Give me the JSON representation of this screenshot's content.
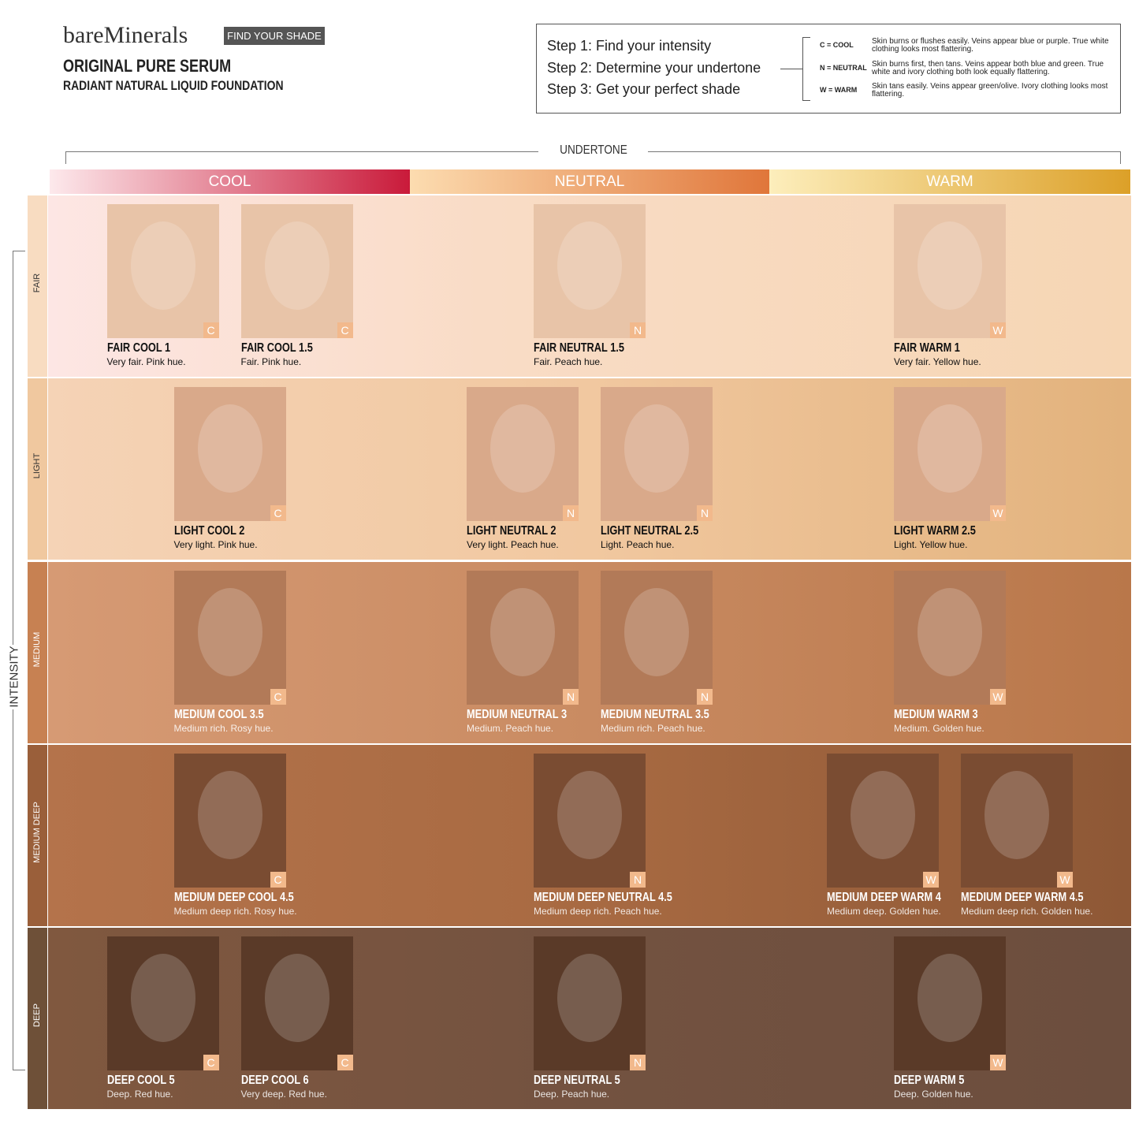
{
  "header": {
    "brand": "bareMinerals",
    "badge": "FIND YOUR SHADE",
    "title": "ORIGINAL PURE SERUM",
    "subtitle": "RADIANT NATURAL LIQUID FOUNDATION"
  },
  "steps": [
    "Step 1: Find your intensity",
    "Step 2: Determine your undertone",
    "Step 3: Get your perfect shade"
  ],
  "undertone_key": [
    {
      "code": "C = COOL",
      "text": "Skin burns or flushes easily. Veins appear blue or purple. True white clothing looks most flattering."
    },
    {
      "code": "N = NEUTRAL",
      "text": "Skin burns first, then tans. Veins appear both blue and green. True white and ivory clothing both look equally flattering."
    },
    {
      "code": "W = WARM",
      "text": "Skin tans easily. Veins appear green/olive. Ivory clothing looks most flattering."
    }
  ],
  "undertone_label": "UNDERTONE",
  "intensity_label": "INTENSITY",
  "columns": [
    "COOL",
    "NEUTRAL",
    "WARM"
  ],
  "rows": [
    {
      "label": "FAIR",
      "shades": [
        {
          "name": "FAIR COOL 1",
          "desc": "Very fair. Pink hue.",
          "tag": "C"
        },
        {
          "name": "FAIR COOL 1.5",
          "desc": "Fair. Pink hue.",
          "tag": "C"
        },
        {
          "name": "FAIR NEUTRAL 1.5",
          "desc": "Fair. Peach hue.",
          "tag": "N"
        },
        {
          "name": "FAIR WARM 1",
          "desc": "Very fair. Yellow hue.",
          "tag": "W"
        }
      ]
    },
    {
      "label": "LIGHT",
      "shades": [
        {
          "name": "LIGHT COOL 2",
          "desc": "Very light. Pink hue.",
          "tag": "C"
        },
        {
          "name": "LIGHT NEUTRAL 2",
          "desc": "Very light. Peach hue.",
          "tag": "N"
        },
        {
          "name": "LIGHT NEUTRAL 2.5",
          "desc": "Light. Peach hue.",
          "tag": "N"
        },
        {
          "name": "LIGHT WARM 2.5",
          "desc": "Light. Yellow hue.",
          "tag": "W"
        }
      ]
    },
    {
      "label": "MEDIUM",
      "shades": [
        {
          "name": "MEDIUM COOL 3.5",
          "desc": "Medium rich. Rosy hue.",
          "tag": "C"
        },
        {
          "name": "MEDIUM NEUTRAL 3",
          "desc": "Medium. Peach hue.",
          "tag": "N"
        },
        {
          "name": "MEDIUM NEUTRAL 3.5",
          "desc": "Medium rich. Peach hue.",
          "tag": "N"
        },
        {
          "name": "MEDIUM WARM 3",
          "desc": "Medium. Golden hue.",
          "tag": "W"
        }
      ]
    },
    {
      "label": "MEDIUM DEEP",
      "shades": [
        {
          "name": "MEDIUM DEEP COOL 4.5",
          "desc": "Medium deep rich. Rosy hue.",
          "tag": "C"
        },
        {
          "name": "MEDIUM DEEP NEUTRAL 4.5",
          "desc": "Medium deep rich. Peach hue.",
          "tag": "N"
        },
        {
          "name": "MEDIUM DEEP WARM 4",
          "desc": "Medium deep. Golden hue.",
          "tag": "W"
        },
        {
          "name": "MEDIUM DEEP WARM 4.5",
          "desc": "Medium deep rich. Golden hue.",
          "tag": "W"
        }
      ]
    },
    {
      "label": "DEEP",
      "shades": [
        {
          "name": "DEEP COOL 5",
          "desc": "Deep. Red hue.",
          "tag": "C"
        },
        {
          "name": "DEEP COOL 6",
          "desc": "Very deep. Red hue.",
          "tag": "C"
        },
        {
          "name": "DEEP NEUTRAL 5",
          "desc": "Deep. Peach hue.",
          "tag": "N"
        },
        {
          "name": "DEEP WARM 5",
          "desc": "Deep. Golden hue.",
          "tag": "W"
        }
      ]
    }
  ]
}
